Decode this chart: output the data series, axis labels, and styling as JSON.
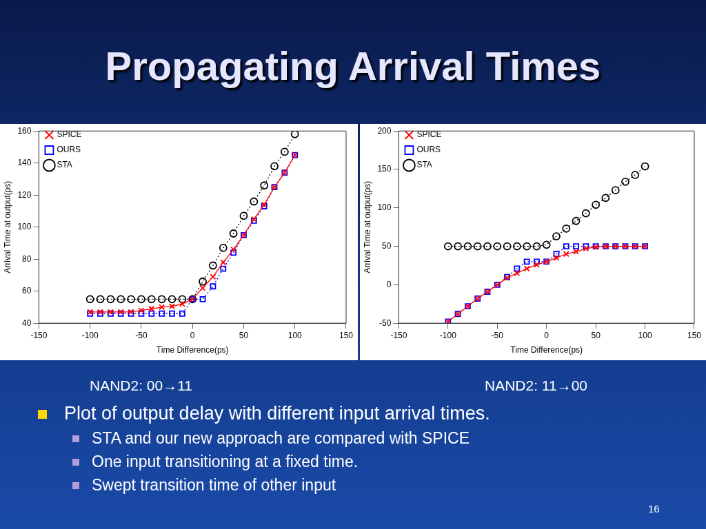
{
  "chart_data": [
    {
      "type": "line",
      "title": "Propagating Arrival Times",
      "subtitle": "NAND2: 00→11",
      "xlabel": "Time Difference(ps)",
      "ylabel": "Arrival Time at output(ps)",
      "x": [
        -100,
        -90,
        -80,
        -70,
        -60,
        -50,
        -40,
        -30,
        -20,
        -10,
        0,
        10,
        20,
        30,
        40,
        50,
        60,
        70,
        80,
        90,
        100
      ],
      "series": [
        {
          "name": "SPICE",
          "color": "#ff0000",
          "marker": "cross",
          "line_style": "solid",
          "values": [
            47,
            47,
            47,
            47,
            47,
            48,
            49,
            50,
            50.5,
            52,
            55,
            62,
            69,
            78,
            86,
            95,
            105,
            114,
            125,
            134,
            145
          ]
        },
        {
          "name": "OURS",
          "color": "#0000ff",
          "marker": "square",
          "line_style": "dotted",
          "values": [
            46,
            46,
            46,
            46,
            46,
            46,
            46,
            46,
            46,
            46,
            55,
            55,
            63,
            74,
            84,
            95,
            104,
            113,
            125,
            134,
            145
          ]
        },
        {
          "name": "STA",
          "color": "#000000",
          "marker": "circle",
          "line_style": "dotted",
          "values": [
            55,
            55,
            55,
            55,
            55,
            55,
            55,
            55,
            55,
            55,
            55,
            66,
            76,
            87,
            96,
            107,
            116,
            126,
            138,
            147,
            158
          ]
        }
      ],
      "xlim": [
        -150,
        150
      ],
      "xticks": [
        -150,
        -100,
        -50,
        0,
        50,
        100,
        150
      ],
      "ylim": [
        40,
        160
      ],
      "yticks": [
        40,
        60,
        80,
        100,
        120,
        140,
        160
      ],
      "grid": false,
      "legend": "top left",
      "annotations": [
        "Plot of output delay with different input arrival times.",
        "STA and our new approach are compared with SPICE",
        "One input transitioning at a fixed time.",
        "Swept transition time of other input",
        "16"
      ]
    },
    {
      "type": "line",
      "subtitle": "NAND2: 11→00",
      "xlabel": "Time Difference(ps)",
      "ylabel": "Arrival Time at output(ps)",
      "x": [
        -100,
        -90,
        -80,
        -70,
        -60,
        -50,
        -40,
        -30,
        -20,
        -10,
        0,
        10,
        20,
        30,
        40,
        50,
        60,
        70,
        80,
        90,
        100
      ],
      "series": [
        {
          "name": "SPICE",
          "color": "#ff0000",
          "marker": "cross",
          "line_style": "solid",
          "values": [
            -48,
            -38,
            -28,
            -18,
            -9,
            0,
            9,
            15,
            21,
            26,
            30,
            35,
            40,
            43,
            47,
            49,
            50,
            50,
            50,
            50,
            50
          ]
        },
        {
          "name": "OURS",
          "color": "#0000ff",
          "marker": "square",
          "line_style": "dotted",
          "values": [
            -48,
            -38,
            -28,
            -18,
            -9,
            0,
            10,
            21,
            30,
            30,
            30,
            40,
            50,
            50,
            50,
            50,
            50,
            50,
            50,
            50,
            50
          ]
        },
        {
          "name": "STA",
          "color": "#000000",
          "marker": "circle",
          "line_style": "dotted",
          "values": [
            50,
            50,
            50,
            50,
            50,
            50,
            50,
            50,
            50,
            50,
            52,
            63,
            73,
            83,
            93,
            104,
            113,
            123,
            134,
            143,
            154
          ]
        }
      ],
      "xlim": [
        -150,
        150
      ],
      "xticks": [
        -150,
        -100,
        -50,
        0,
        50,
        100,
        150
      ],
      "ylim": [
        -50,
        200
      ],
      "yticks": [
        -50,
        0,
        50,
        100,
        150,
        200
      ],
      "grid": false,
      "legend": "top left"
    }
  ]
}
